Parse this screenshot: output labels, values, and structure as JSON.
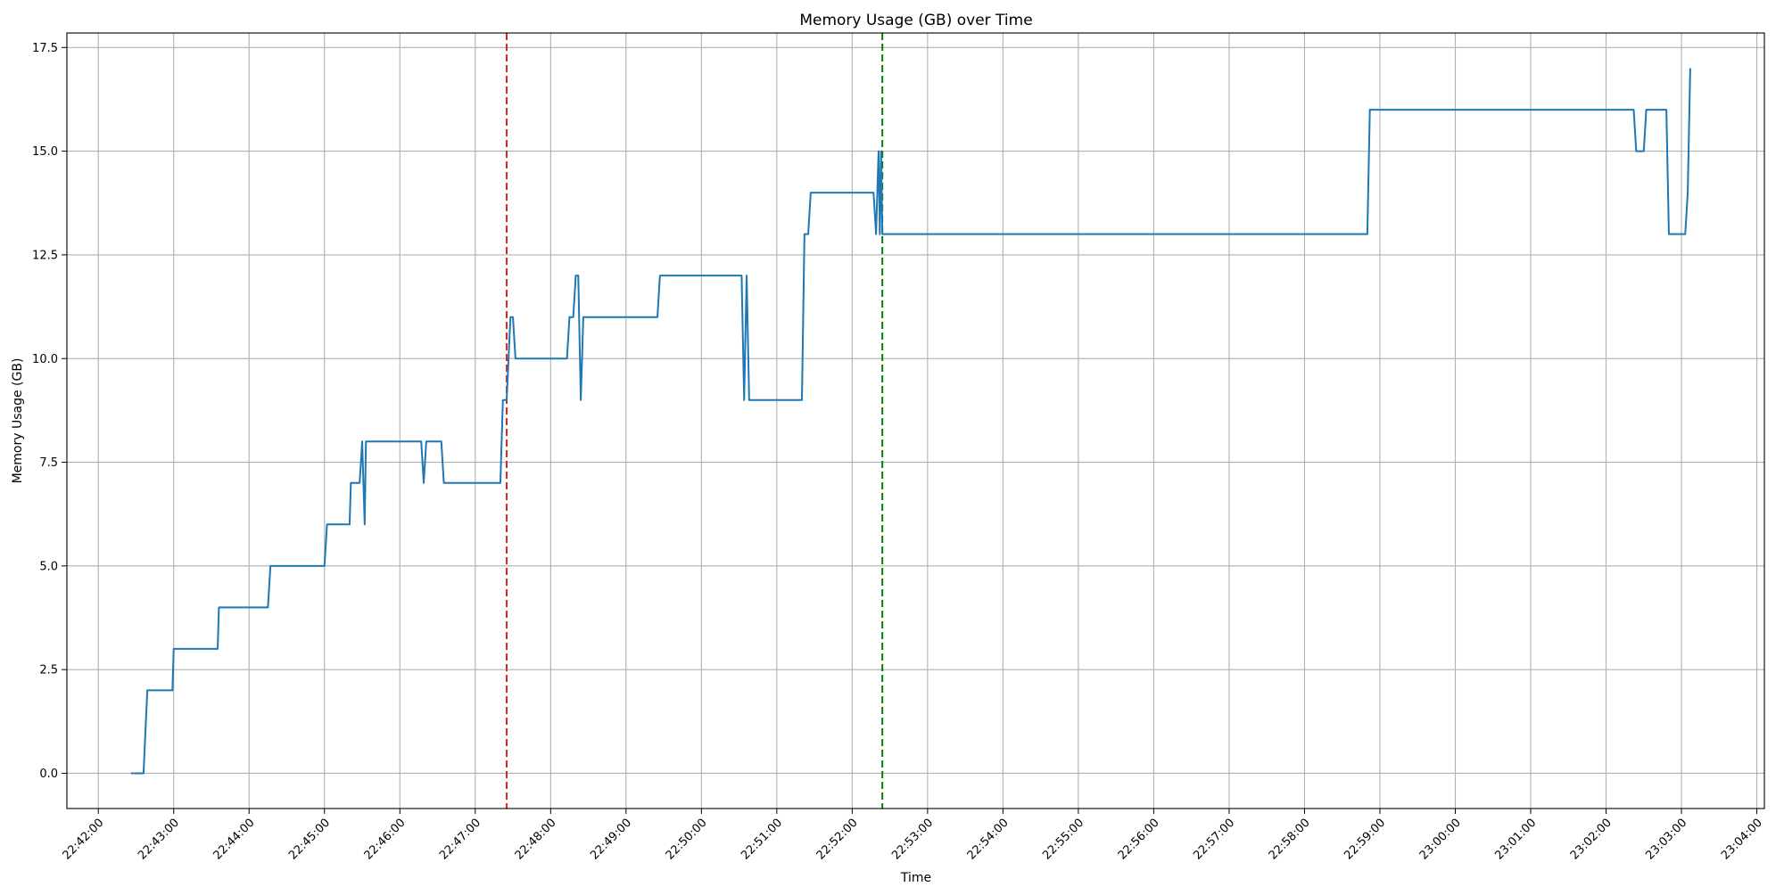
{
  "chart_data": {
    "type": "line",
    "title": "Memory Usage (GB) over Time",
    "xlabel": "Time",
    "ylabel": "Memory Usage (GB)",
    "grid": true,
    "x_ticks": [
      "22:42:00",
      "22:43:00",
      "22:44:00",
      "22:45:00",
      "22:46:00",
      "22:47:00",
      "22:48:00",
      "22:49:00",
      "22:50:00",
      "22:51:00",
      "22:52:00",
      "22:53:00",
      "22:54:00",
      "22:55:00",
      "22:56:00",
      "22:57:00",
      "22:58:00",
      "22:59:00",
      "23:00:00",
      "23:01:00",
      "23:02:00",
      "23:03:00",
      "23:04:00"
    ],
    "y_ticks": [
      "0.0",
      "2.5",
      "5.0",
      "7.5",
      "10.0",
      "12.5",
      "15.0",
      "17.5"
    ],
    "xlim": [
      "22:41:35",
      "23:04:06"
    ],
    "ylim": [
      -0.85,
      17.85
    ],
    "line_color": "#1f77b4",
    "markers": [
      {
        "x": "22:47:25",
        "color": "#d62728"
      },
      {
        "x": "22:52:24",
        "color": "#008000"
      }
    ],
    "series": [
      {
        "x": [
          "22:42:26",
          "22:42:36",
          "22:42:39",
          "22:42:59",
          "22:43:00",
          "22:43:35",
          "22:43:36",
          "22:44:15",
          "22:44:17",
          "22:45:00",
          "22:45:02",
          "22:45:20",
          "22:45:21",
          "22:45:28",
          "22:45:30",
          "22:45:32",
          "22:45:33",
          "22:45:34",
          "22:46:17",
          "22:46:19",
          "22:46:21",
          "22:46:33",
          "22:46:35",
          "22:47:20",
          "22:47:22",
          "22:47:25",
          "22:47:28",
          "22:47:30",
          "22:47:32",
          "22:48:13",
          "22:48:15",
          "22:48:18",
          "22:48:20",
          "22:48:22",
          "22:48:24",
          "22:48:26",
          "22:49:25",
          "22:49:27",
          "22:50:32",
          "22:50:34",
          "22:50:36",
          "22:50:38",
          "22:51:20",
          "22:51:22",
          "22:51:25",
          "22:51:27",
          "22:52:17",
          "22:52:19",
          "22:52:21",
          "22:52:22",
          "22:52:23",
          "22:52:24",
          "22:52:25",
          "22:58:50",
          "22:58:52",
          "23:02:22",
          "23:02:24",
          "23:02:30",
          "23:02:32",
          "23:02:48",
          "23:02:50",
          "23:03:03",
          "23:03:05",
          "23:03:07"
        ],
        "values": [
          0,
          0,
          2,
          2,
          3,
          3,
          4,
          4,
          5,
          5,
          6,
          6,
          7,
          7,
          8,
          6,
          8,
          8,
          8,
          7,
          8,
          8,
          7,
          7,
          9,
          9,
          11,
          11,
          10,
          10,
          11,
          11,
          12,
          12,
          9,
          11,
          11,
          12,
          12,
          9,
          12,
          9,
          9,
          13,
          13,
          14,
          14,
          13,
          15,
          13,
          15,
          13,
          13,
          13,
          16,
          16,
          15,
          15,
          16,
          16,
          13,
          13,
          14,
          17
        ]
      }
    ]
  }
}
